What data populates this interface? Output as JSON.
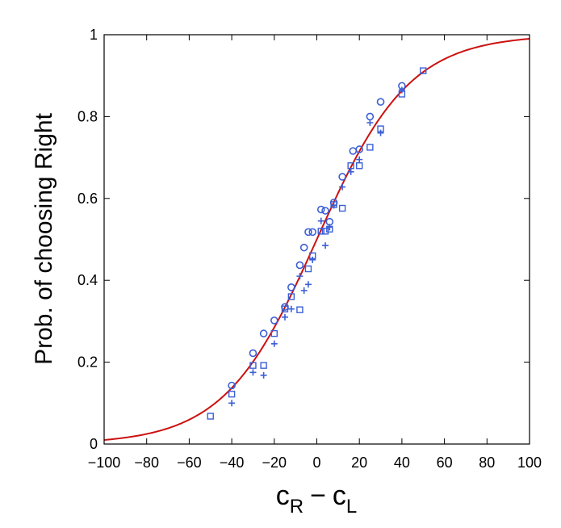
{
  "chart_data": {
    "type": "scatter",
    "title": "",
    "ylabel": "Prob. of choosing Right",
    "xlabel_parts": {
      "c1": "c",
      "sub1": "R",
      "minus": "−",
      "c2": "c",
      "sub2": "L"
    },
    "xlim": [
      -100,
      100
    ],
    "ylim": [
      0,
      1
    ],
    "x_ticks": [
      -100,
      -80,
      -60,
      -40,
      -20,
      0,
      20,
      40,
      60,
      80,
      100
    ],
    "y_ticks": [
      0,
      0.2,
      0.4,
      0.6,
      0.8,
      1
    ],
    "x_tick_labels": [
      "−100",
      "−80",
      "−60",
      "−40",
      "−20",
      "0",
      "20",
      "40",
      "60",
      "80",
      "100"
    ],
    "y_tick_labels": [
      "0",
      "0.2",
      "0.4",
      "0.6",
      "0.8",
      "1"
    ],
    "grid": false,
    "colors": {
      "markers": "#3a5fd6",
      "fit_curve": "#cc1111",
      "axes": "#000000"
    },
    "fit_curve": {
      "kind": "logistic",
      "slope_per_unit": 0.046,
      "center": 0
    },
    "series": [
      {
        "marker": "circle",
        "points": [
          [
            -40,
            0.143
          ],
          [
            -30,
            0.222
          ],
          [
            -25,
            0.27
          ],
          [
            -20,
            0.302
          ],
          [
            -15,
            0.335
          ],
          [
            -12,
            0.383
          ],
          [
            -8,
            0.437
          ],
          [
            -6,
            0.48
          ],
          [
            -4,
            0.518
          ],
          [
            -2,
            0.518
          ],
          [
            2,
            0.573
          ],
          [
            4,
            0.57
          ],
          [
            6,
            0.543
          ],
          [
            8,
            0.59
          ],
          [
            12,
            0.653
          ],
          [
            17,
            0.716
          ],
          [
            20,
            0.72
          ],
          [
            25,
            0.8
          ],
          [
            30,
            0.836
          ],
          [
            40,
            0.875
          ]
        ]
      },
      {
        "marker": "square",
        "points": [
          [
            -50,
            0.068
          ],
          [
            -40,
            0.122
          ],
          [
            -30,
            0.192
          ],
          [
            -25,
            0.192
          ],
          [
            -20,
            0.27
          ],
          [
            -15,
            0.33
          ],
          [
            -12,
            0.36
          ],
          [
            -8,
            0.328
          ],
          [
            -4,
            0.428
          ],
          [
            -2,
            0.46
          ],
          [
            2,
            0.52
          ],
          [
            4,
            0.52
          ],
          [
            6,
            0.525
          ],
          [
            8,
            0.585
          ],
          [
            12,
            0.576
          ],
          [
            16,
            0.68
          ],
          [
            20,
            0.68
          ],
          [
            25,
            0.725
          ],
          [
            30,
            0.77
          ],
          [
            40,
            0.855
          ],
          [
            50,
            0.912
          ]
        ]
      },
      {
        "marker": "plus",
        "points": [
          [
            -40,
            0.1
          ],
          [
            -30,
            0.175
          ],
          [
            -25,
            0.168
          ],
          [
            -20,
            0.245
          ],
          [
            -15,
            0.31
          ],
          [
            -12,
            0.33
          ],
          [
            -8,
            0.41
          ],
          [
            -6,
            0.375
          ],
          [
            -4,
            0.39
          ],
          [
            -2,
            0.45
          ],
          [
            2,
            0.545
          ],
          [
            4,
            0.485
          ],
          [
            6,
            0.53
          ],
          [
            8,
            0.583
          ],
          [
            12,
            0.628
          ],
          [
            16,
            0.665
          ],
          [
            20,
            0.695
          ],
          [
            25,
            0.785
          ],
          [
            30,
            0.76
          ],
          [
            40,
            0.865
          ]
        ]
      }
    ]
  }
}
